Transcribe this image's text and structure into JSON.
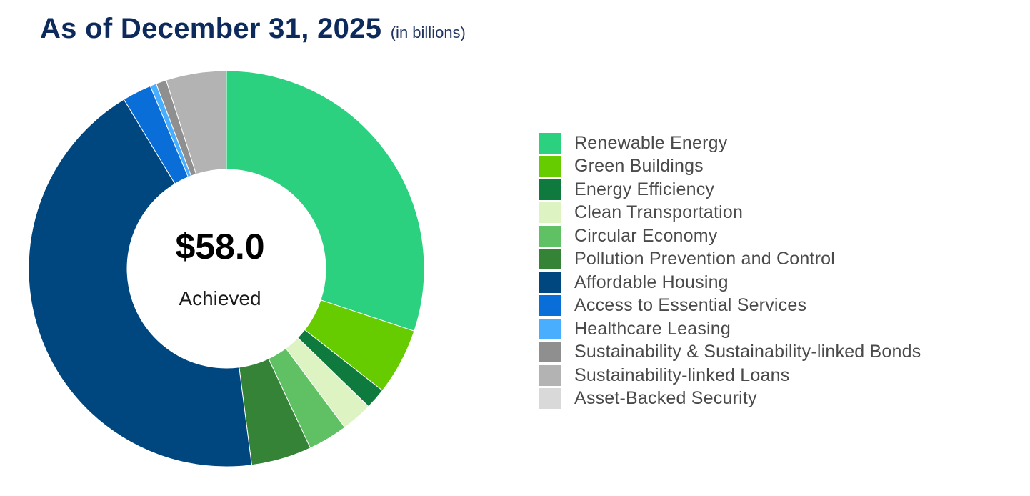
{
  "header": {
    "title": "As of December 31, 2025",
    "subtitle": "(in billions)"
  },
  "center": {
    "value": "$58.0",
    "label": "Achieved"
  },
  "chart_data": {
    "type": "pie",
    "variant": "donut",
    "title": "As of December 31, 2025",
    "subtitle": "(in billions)",
    "total": 58.0,
    "unit": "billions",
    "legend_position": "right",
    "series": [
      {
        "name": "Renewable Energy",
        "value": 17.7,
        "color": "#2bd17e"
      },
      {
        "name": "Green Buildings",
        "value": 3.2,
        "color": "#66cc00"
      },
      {
        "name": "Energy Efficiency",
        "value": 1.0,
        "color": "#0e7a3e"
      },
      {
        "name": "Clean Transportation",
        "value": 1.5,
        "color": "#ddf3c2"
      },
      {
        "name": "Circular Economy",
        "value": 1.9,
        "color": "#5fc064"
      },
      {
        "name": "Pollution Prevention and Control",
        "value": 2.9,
        "color": "#358337"
      },
      {
        "name": "Affordable Housing",
        "value": 25.5,
        "color": "#00467f"
      },
      {
        "name": "Access to Essential Services",
        "value": 1.4,
        "color": "#0a6ed8"
      },
      {
        "name": "Healthcare Leasing",
        "value": 0.3,
        "color": "#4aaeff"
      },
      {
        "name": "Sustainability & Sustainability-linked Bonds",
        "value": 0.5,
        "color": "#8f8f8f"
      },
      {
        "name": "Sustainability-linked Loans",
        "value": 2.9,
        "color": "#b3b3b3"
      },
      {
        "name": "Asset-Backed Security",
        "value": 0.0,
        "color": "#d9d9d9"
      }
    ]
  }
}
